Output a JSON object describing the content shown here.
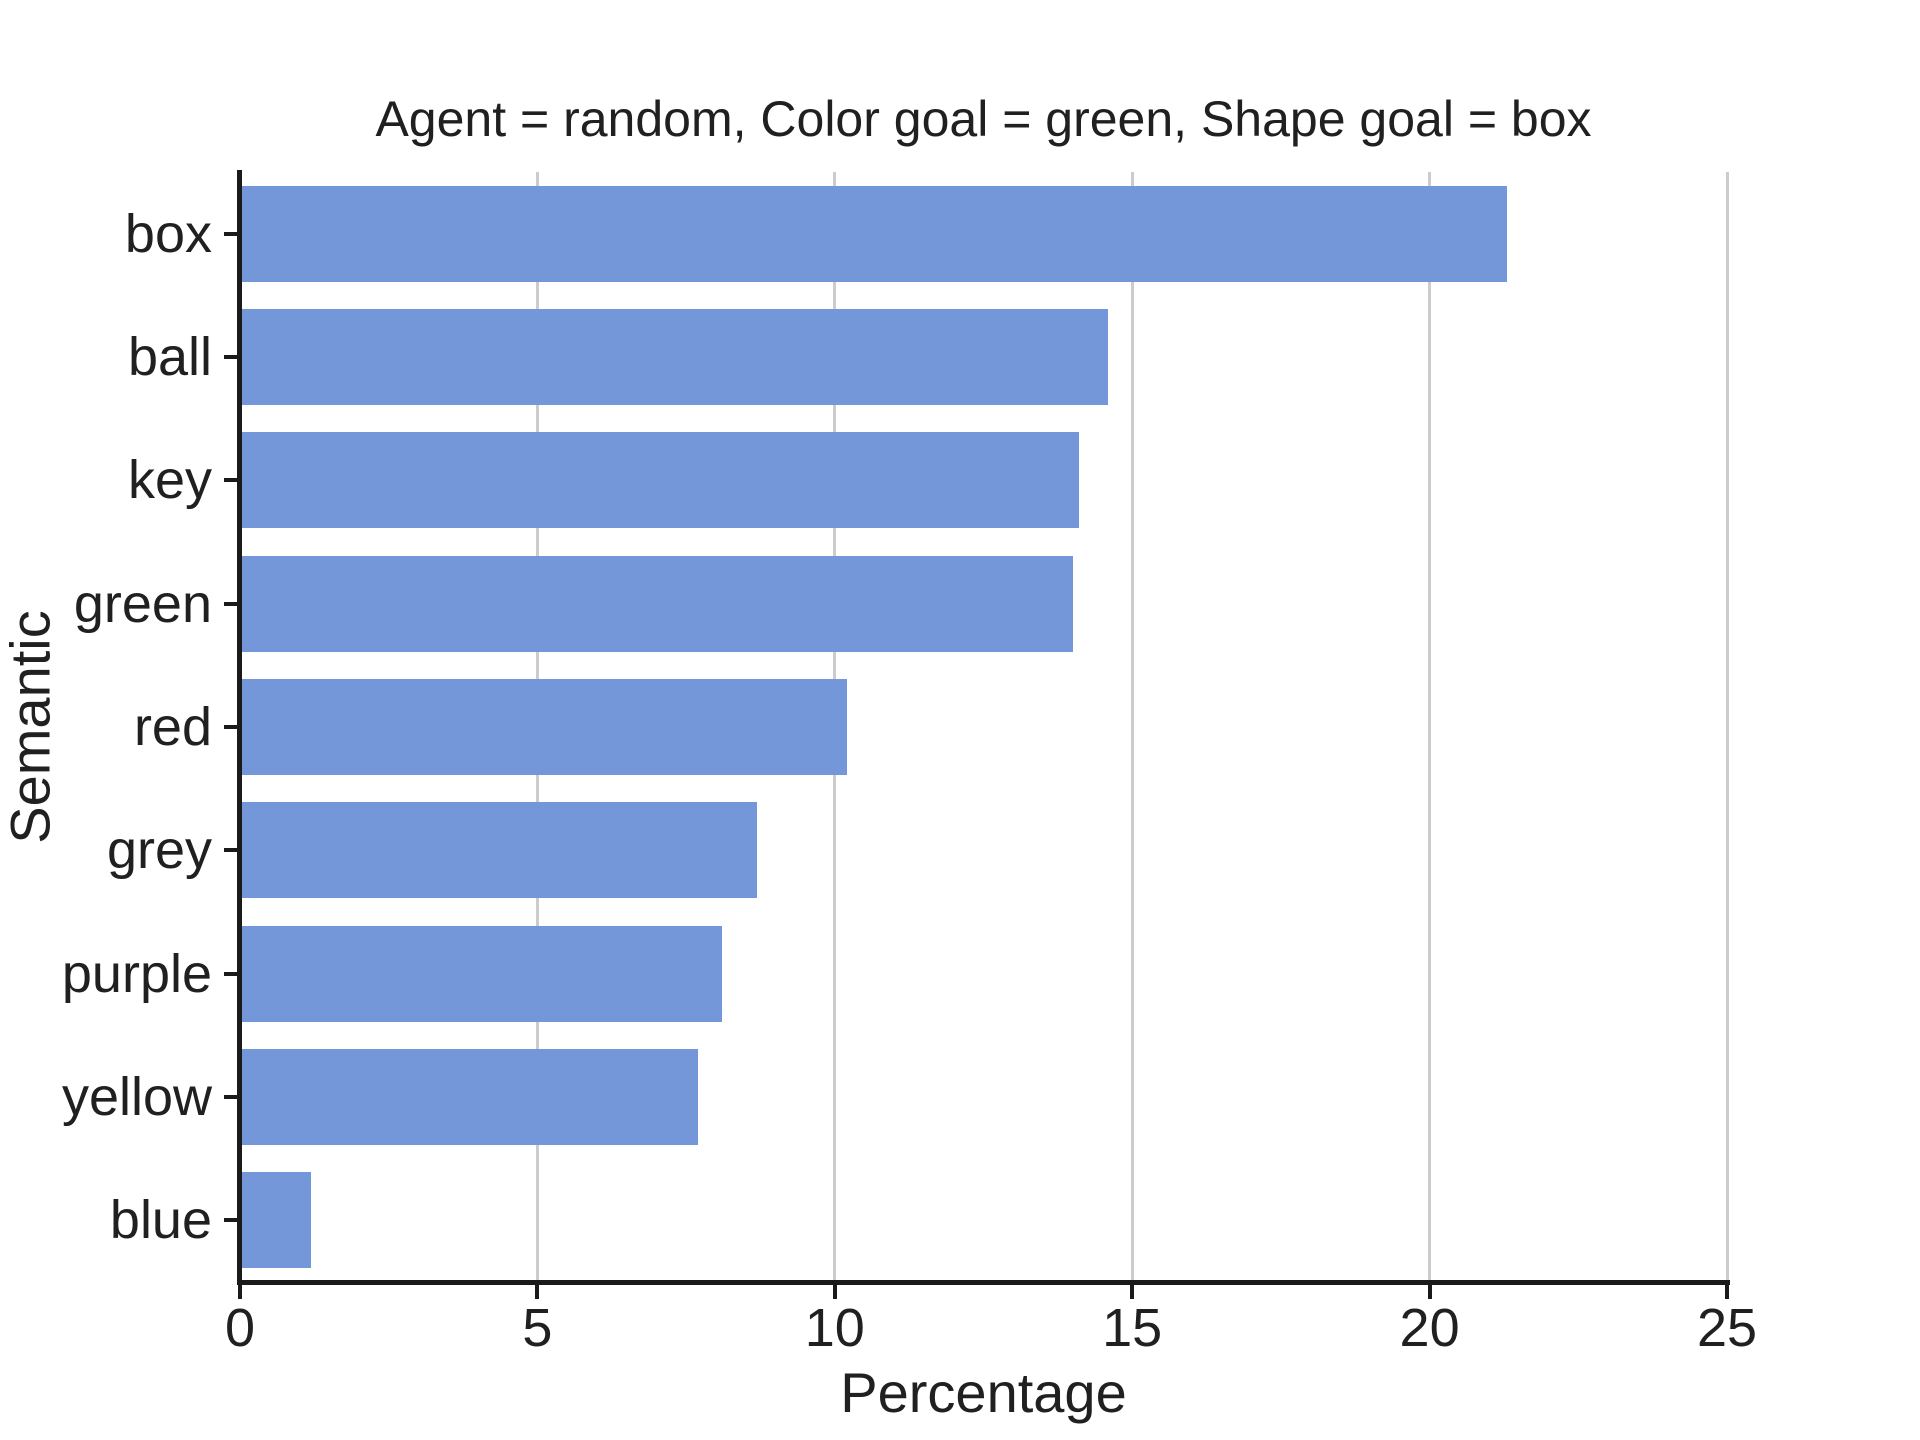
{
  "chart_data": {
    "type": "bar",
    "orientation": "horizontal",
    "title": "Agent = random, Color goal = green, Shape goal = box",
    "xlabel": "Percentage",
    "ylabel": "Semantic",
    "categories": [
      "box",
      "ball",
      "key",
      "green",
      "red",
      "grey",
      "purple",
      "yellow",
      "blue"
    ],
    "values": [
      21.3,
      14.6,
      14.1,
      14.0,
      10.2,
      8.7,
      8.1,
      7.7,
      1.2
    ],
    "xlim": [
      0,
      25
    ],
    "xticks": [
      0,
      5,
      10,
      15,
      20,
      25
    ],
    "grid": "vertical gridlines at x ticks",
    "legend": "none",
    "bar_color": "#7397d8",
    "grid_color": "#cccccc",
    "spine_color": "#1a1a1a",
    "text_color": "#202020",
    "background": "#ffffff"
  }
}
